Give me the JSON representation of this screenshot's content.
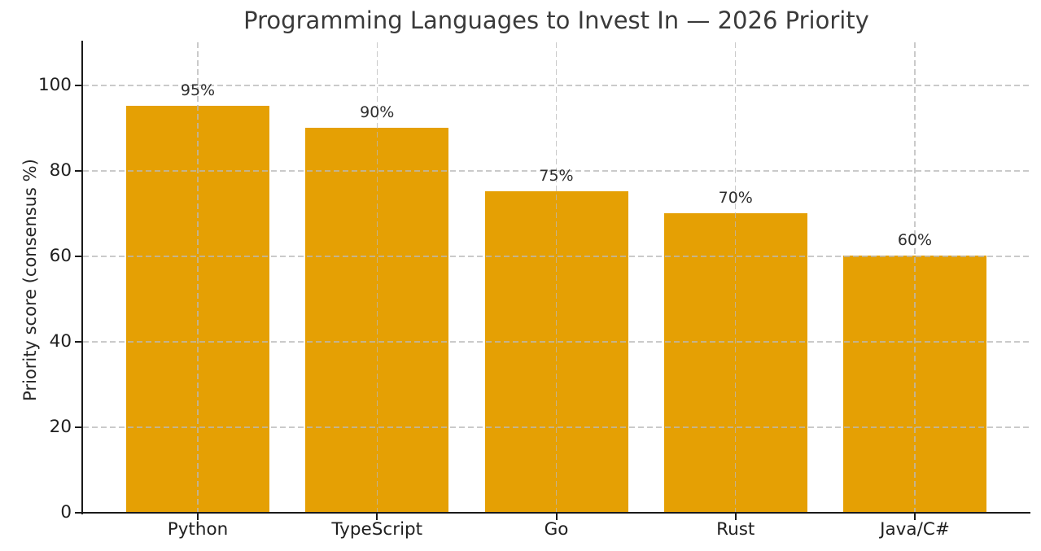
{
  "chart_data": {
    "type": "bar",
    "title": "Programming Languages to Invest In — 2026 Priority",
    "ylabel": "Priority score (consensus %)",
    "xlabel": "",
    "categories": [
      "Python",
      "TypeScript",
      "Go",
      "Rust",
      "Java/C#"
    ],
    "values": [
      95,
      90,
      75,
      70,
      60
    ],
    "value_labels": [
      "95%",
      "90%",
      "75%",
      "70%",
      "60%"
    ],
    "yticks": [
      0,
      20,
      40,
      60,
      80,
      100
    ],
    "ylim": [
      0,
      110
    ],
    "grid": "dashed, both axes, drawn over bars",
    "legend_position": "none",
    "bar_color": "#E5A004",
    "grid_color": "#c9c9c9",
    "axis_color": "#1a1a1a",
    "title_color": "#3a3a3a",
    "tick_label_color": "#1f1f1f"
  }
}
